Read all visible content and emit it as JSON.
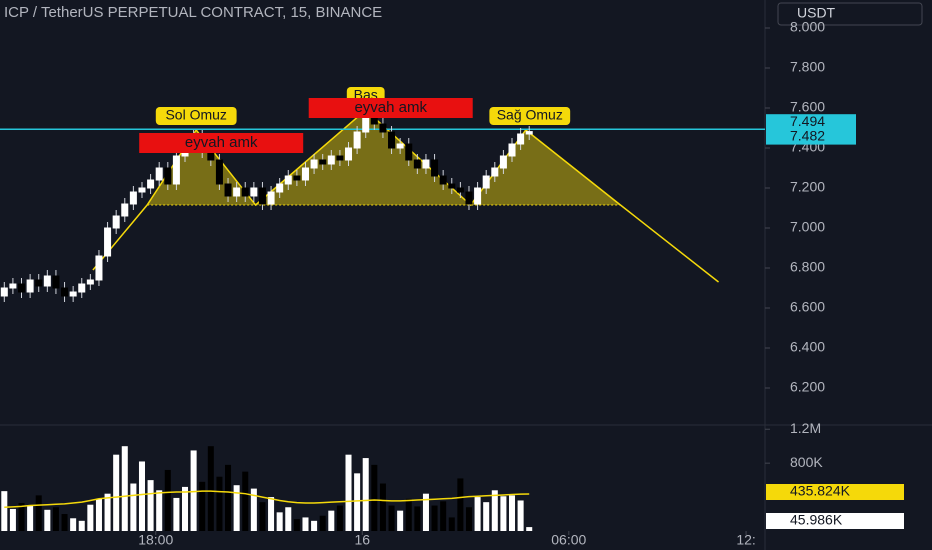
{
  "chart_data": {
    "type": "candlestick",
    "title": "ICP / TetherUS PERPETUAL CONTRACT, 15, BINANCE",
    "currency": "USDT",
    "up_color": "#ffffff",
    "down_color": "#000000",
    "open": [
      6.66,
      6.7,
      6.72,
      6.68,
      6.74,
      6.71,
      6.76,
      6.7,
      6.66,
      6.68,
      6.72,
      6.74,
      6.86,
      7.0,
      7.06,
      7.12,
      7.18,
      7.2,
      7.24,
      7.3,
      7.22,
      7.36,
      7.42,
      7.46,
      7.38,
      7.34,
      7.22,
      7.16,
      7.2,
      7.16,
      7.2,
      7.12,
      7.18,
      7.22,
      7.26,
      7.24,
      7.3,
      7.34,
      7.32,
      7.36,
      7.34,
      7.4,
      7.48,
      7.56,
      7.52,
      7.48,
      7.4,
      7.42,
      7.34,
      7.3,
      7.34,
      7.26,
      7.22,
      7.2,
      7.18,
      7.12,
      7.2,
      7.26,
      7.3,
      7.36,
      7.42,
      7.47
    ],
    "high": [
      6.73,
      6.75,
      6.75,
      6.77,
      6.77,
      6.79,
      6.79,
      6.73,
      6.71,
      6.75,
      6.77,
      6.89,
      7.03,
      7.09,
      7.15,
      7.21,
      7.23,
      7.27,
      7.33,
      7.33,
      7.39,
      7.45,
      7.49,
      7.49,
      7.41,
      7.37,
      7.25,
      7.23,
      7.23,
      7.23,
      7.23,
      7.21,
      7.25,
      7.29,
      7.29,
      7.33,
      7.37,
      7.37,
      7.39,
      7.39,
      7.43,
      7.51,
      7.59,
      7.59,
      7.55,
      7.51,
      7.45,
      7.45,
      7.37,
      7.37,
      7.37,
      7.29,
      7.25,
      7.23,
      7.21,
      7.23,
      7.29,
      7.33,
      7.39,
      7.45,
      7.5,
      7.51
    ],
    "low": [
      6.63,
      6.67,
      6.65,
      6.65,
      6.68,
      6.68,
      6.67,
      6.63,
      6.63,
      6.65,
      6.69,
      6.71,
      6.83,
      6.97,
      7.03,
      7.09,
      7.15,
      7.17,
      7.21,
      7.19,
      7.19,
      7.33,
      7.39,
      7.35,
      7.31,
      7.19,
      7.13,
      7.13,
      7.13,
      7.13,
      7.09,
      7.09,
      7.15,
      7.19,
      7.21,
      7.21,
      7.27,
      7.29,
      7.29,
      7.31,
      7.31,
      7.37,
      7.45,
      7.49,
      7.45,
      7.37,
      7.37,
      7.31,
      7.27,
      7.27,
      7.23,
      7.19,
      7.17,
      7.15,
      7.09,
      7.09,
      7.17,
      7.23,
      7.27,
      7.33,
      7.39,
      7.44
    ],
    "close": [
      6.7,
      6.72,
      6.68,
      6.74,
      6.71,
      6.76,
      6.7,
      6.66,
      6.68,
      6.72,
      6.74,
      6.86,
      7.0,
      7.06,
      7.12,
      7.18,
      7.2,
      7.24,
      7.3,
      7.22,
      7.36,
      7.42,
      7.46,
      7.38,
      7.34,
      7.22,
      7.16,
      7.2,
      7.16,
      7.2,
      7.12,
      7.18,
      7.22,
      7.26,
      7.24,
      7.3,
      7.34,
      7.32,
      7.36,
      7.34,
      7.4,
      7.48,
      7.56,
      7.52,
      7.48,
      7.4,
      7.42,
      7.34,
      7.3,
      7.34,
      7.26,
      7.22,
      7.2,
      7.18,
      7.12,
      7.2,
      7.26,
      7.3,
      7.36,
      7.42,
      7.47,
      7.482
    ],
    "reference_price": 7.494,
    "ylim": [
      6.015,
      8.14
    ],
    "yticks": [
      {
        "value": 8.0,
        "label": "8.000"
      },
      {
        "value": 7.8,
        "label": "7.800"
      },
      {
        "value": 7.6,
        "label": "7.600"
      },
      {
        "value": 7.4,
        "label": "7.400"
      },
      {
        "value": 7.2,
        "label": "7.200"
      },
      {
        "value": 7.0,
        "label": "7.000"
      },
      {
        "value": 6.8,
        "label": "6.800"
      },
      {
        "value": 6.6,
        "label": "6.600"
      },
      {
        "value": 6.4,
        "label": "6.400"
      },
      {
        "value": 6.2,
        "label": "6.200"
      }
    ],
    "xlim": [
      -0.5,
      88.4
    ],
    "xticks": [
      {
        "value": 17.6,
        "label": "18:00"
      },
      {
        "value": 41.6,
        "label": "16"
      },
      {
        "value": 65.6,
        "label": "06:00"
      },
      {
        "value": 86.2,
        "label": "12:"
      }
    ],
    "pattern": {
      "color": "#f5d90a",
      "points_x": [
        10.3,
        16.6,
        22.3,
        29.2,
        42,
        54.2,
        60.6,
        71.6,
        83
      ],
      "points_y": [
        6.79,
        7.115,
        7.49,
        7.115,
        7.59,
        7.115,
        7.49,
        7.115,
        6.73
      ]
    },
    "annotations": [
      "Sol Omuz",
      "Baş",
      "Sağ Omuz"
    ],
    "alerts": [
      "eyvah amk",
      "eyvah amk"
    ],
    "volume": {
      "values": [
        470000,
        260000,
        330000,
        300000,
        420000,
        250000,
        280000,
        200000,
        150000,
        120000,
        310000,
        380000,
        440000,
        900000,
        1000000,
        560000,
        820000,
        600000,
        480000,
        720000,
        390000,
        520000,
        950000,
        580000,
        1000000,
        640000,
        780000,
        540000,
        700000,
        500000,
        340000,
        400000,
        220000,
        280000,
        140000,
        160000,
        120000,
        180000,
        240000,
        300000,
        900000,
        680000,
        860000,
        780000,
        560000,
        300000,
        240000,
        380000,
        290000,
        440000,
        300000,
        350000,
        160000,
        620000,
        280000,
        400000,
        340000,
        480000,
        410000,
        420000,
        360000,
        45986
      ],
      "ma": [
        280000,
        285000,
        290000,
        300000,
        305000,
        310000,
        315000,
        320000,
        330000,
        340000,
        360000,
        380000,
        390000,
        400000,
        410000,
        420000,
        430000,
        440000,
        450000,
        455000,
        460000,
        460000,
        465000,
        470000,
        470000,
        465000,
        460000,
        450000,
        440000,
        420000,
        400000,
        380000,
        360000,
        345000,
        335000,
        330000,
        330000,
        335000,
        340000,
        345000,
        350000,
        355000,
        360000,
        365000,
        360000,
        355000,
        355000,
        360000,
        365000,
        370000,
        375000,
        380000,
        385000,
        395000,
        405000,
        410000,
        415000,
        420000,
        425000,
        430000,
        435000,
        435824
      ],
      "ma_color": "#f5d90a",
      "ma_label": {
        "value": 435824,
        "label": "435.824K"
      },
      "last_label": {
        "value": 45986,
        "label": "45.986K"
      },
      "ylim": [
        0,
        1250000
      ],
      "yticks": [
        {
          "value": 1200000,
          "label": "1.2M"
        },
        {
          "value": 800000,
          "label": "800K"
        }
      ]
    }
  }
}
